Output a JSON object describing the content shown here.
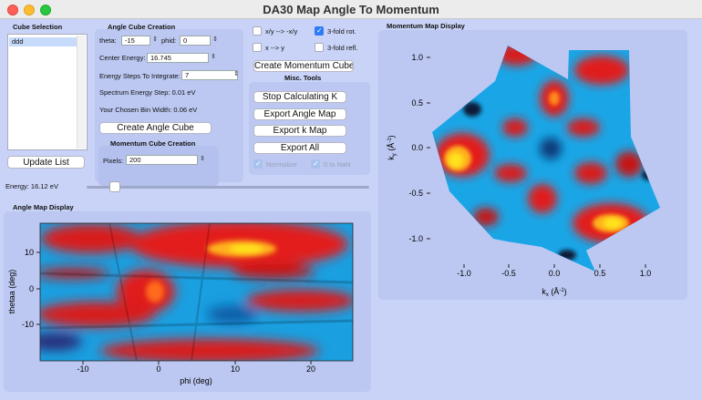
{
  "window": {
    "title": "DA30 Map Angle To Momentum"
  },
  "cube_selection": {
    "title": "Cube Selection",
    "items": [
      "ddd"
    ],
    "update_label": "Update List"
  },
  "angle_cube": {
    "title": "Angle Cube Creation",
    "theta_label": "theta:",
    "theta_value": "-15",
    "phid_label": "phid:",
    "phid_value": "0",
    "center_label": "Center Energy:",
    "center_value": "16.745",
    "steps_label": "Energy Steps To Integrate:",
    "steps_value": "7",
    "spectrum_step": "Spectrum Energy Step: 0.01 eV",
    "bin_width": "Your Chosen Bin Width: 0.06 eV",
    "create_label": "Create Angle Cube"
  },
  "momentum_cube": {
    "title": "Momentum Cube Creation",
    "pixels_label": "Pixels:",
    "pixels_value": "200"
  },
  "options": {
    "xy_swap_label": "x/y --> -x/y",
    "xy_swap_checked": false,
    "rot3_label": "3-fold rot.",
    "rot3_checked": true,
    "x_to_y_label": "x --> y",
    "x_to_y_checked": false,
    "refl3_label": "3-fold refl.",
    "refl3_checked": false,
    "create_momentum_label": "Create Momentum Cube"
  },
  "misc_tools": {
    "title": "Misc. Tools",
    "buttons": [
      "Stop Calculating K",
      "Export Angle Map",
      "Export k Map",
      "Export All"
    ],
    "normalize_label": "Normalize",
    "normalize_checked": true,
    "zero_nan_label": "0 to NaN",
    "zero_nan_checked": true
  },
  "energy": {
    "label": "Energy: 16.12 eV",
    "value_ev": 16.12
  },
  "angle_map": {
    "title": "Angle Map Display",
    "xlabel": "phi (deg)",
    "ylabel": "thetaa (deg)",
    "xticks": [
      "-10",
      "0",
      "10",
      "20"
    ],
    "yticks": [
      "10",
      "0",
      "-10"
    ]
  },
  "momentum_map": {
    "title": "Momentum Map Display",
    "xlabel": "k",
    "xlabel_sub": "x",
    "xlabel_unit": " (Å",
    "xlabel_sup": "-1",
    "xlabel_close": ")",
    "ylabel": "k",
    "ylabel_sub": "y",
    "ylabel_unit": " (Å",
    "ylabel_sup": "-1",
    "ylabel_close": ")",
    "xticks": [
      "-1.0",
      "-0.5",
      "0.0",
      "0.5",
      "1.0"
    ],
    "yticks": [
      "1.0",
      "0.5",
      "0.0",
      "-0.5",
      "-1.0"
    ]
  },
  "colors": {
    "hot": "#e81c1c",
    "mid": "#1aa6e6",
    "cold": "#0a1e3a",
    "peak": "#ffe21a"
  }
}
